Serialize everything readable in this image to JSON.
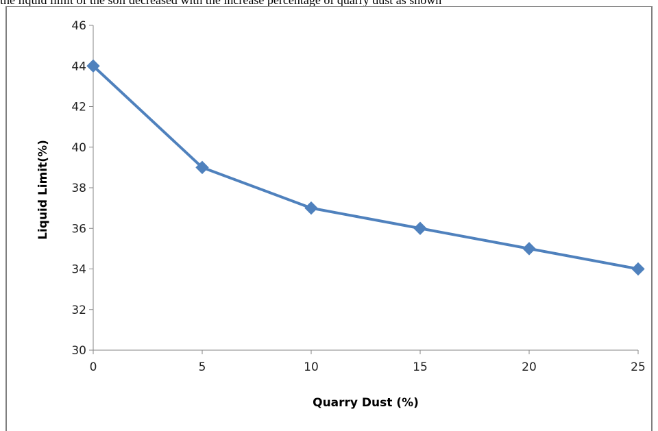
{
  "caption": "the liquid limit of the soil decreased with the increase percentage of quarry dust as shown",
  "chart_data": {
    "type": "line",
    "title": "",
    "xlabel": "Quarry Dust (%)",
    "ylabel": "Liquid Limit(%)",
    "x": [
      0,
      5,
      10,
      15,
      20,
      25
    ],
    "series": [
      {
        "values": [
          44,
          39,
          37,
          36,
          35,
          34
        ],
        "color": "#4f81bd",
        "marker": "diamond"
      }
    ],
    "xlim": [
      0,
      25
    ],
    "ylim": [
      30,
      46
    ],
    "xticks": [
      0,
      5,
      10,
      15,
      20,
      25
    ],
    "yticks": [
      30,
      32,
      34,
      36,
      38,
      40,
      42,
      44,
      46
    ],
    "grid": false,
    "legend": "none",
    "axis_color": "#868686"
  }
}
